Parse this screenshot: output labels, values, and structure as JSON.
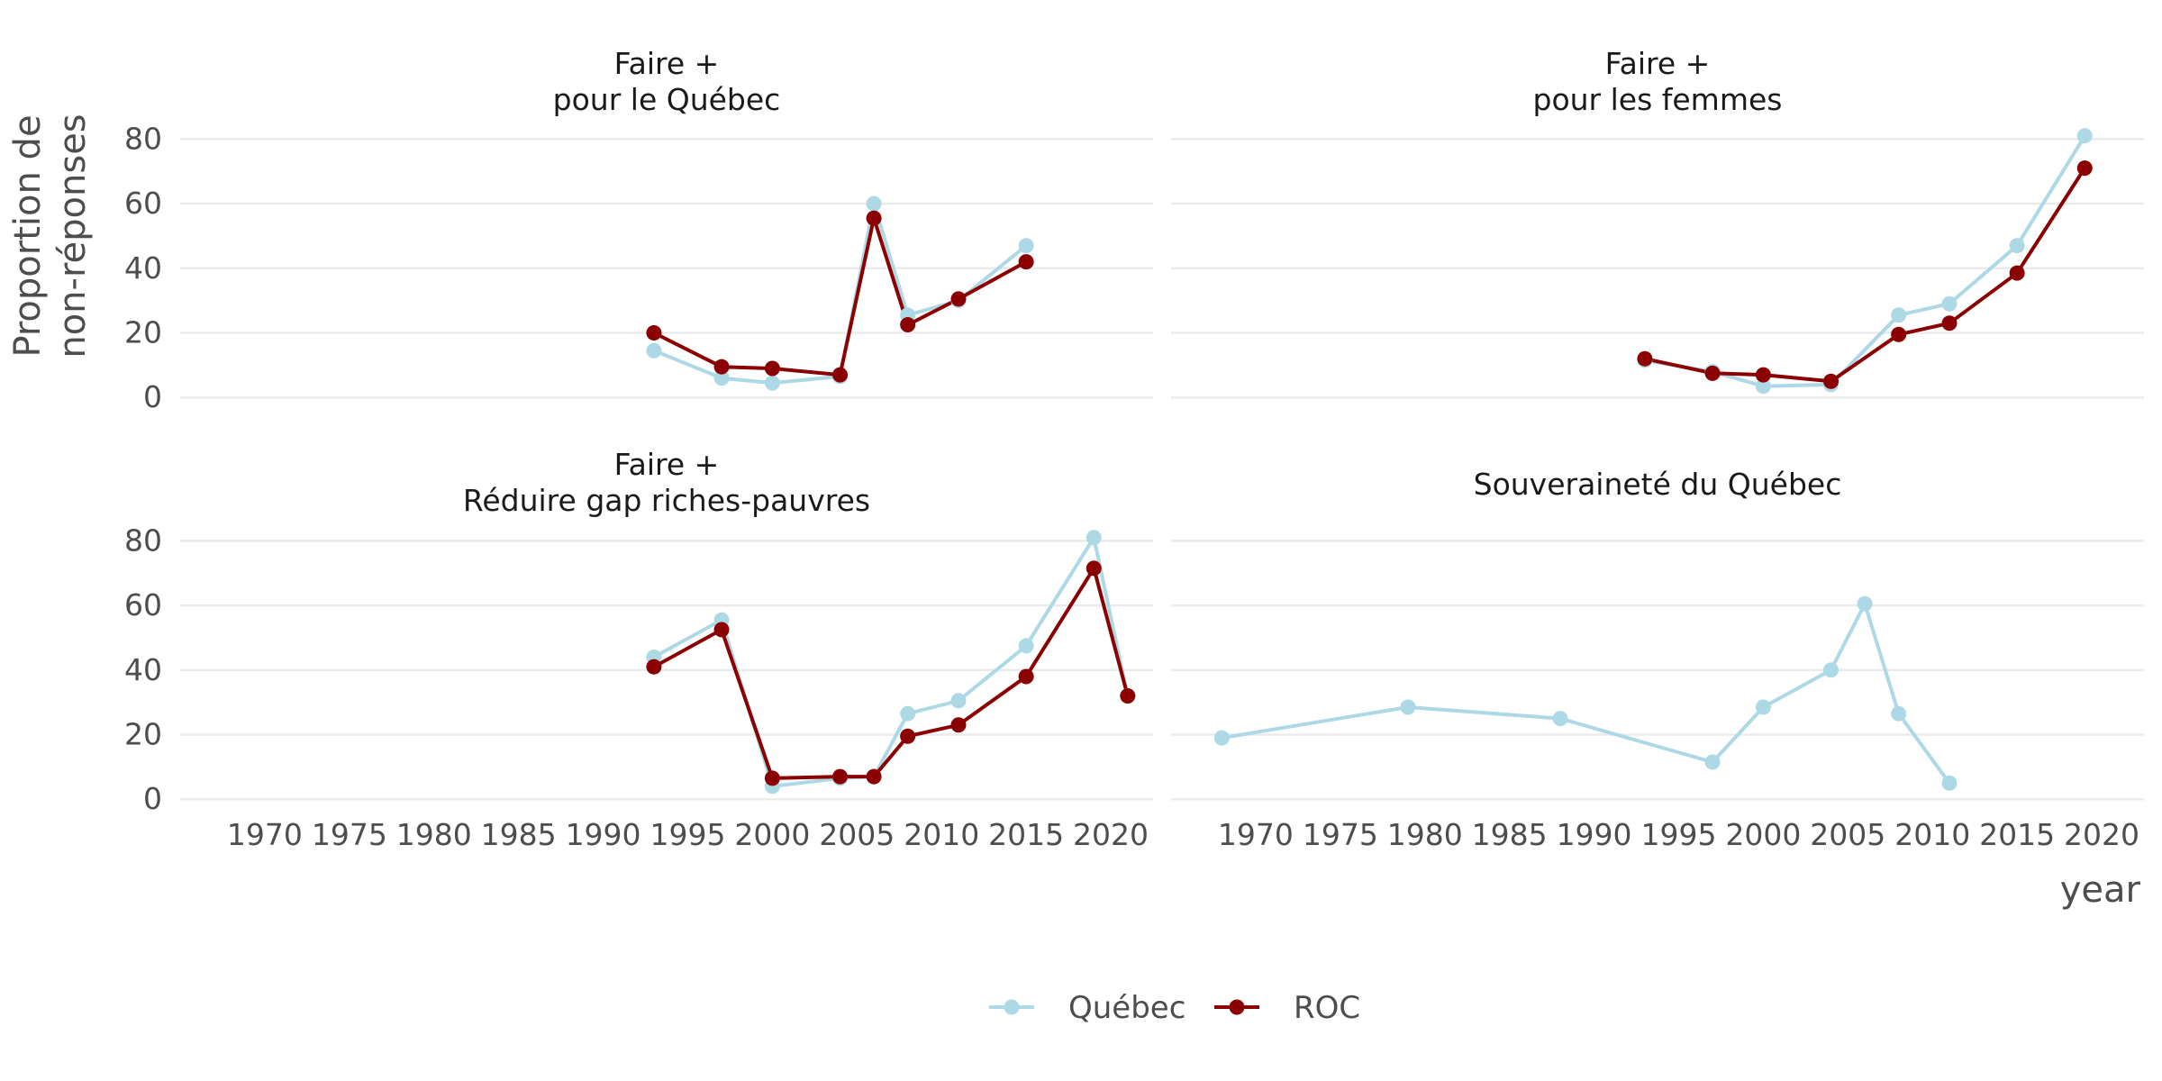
{
  "chart_data": {
    "type": "line",
    "xlabel": "year",
    "ylabel_lines": [
      "Proportion de",
      "non-réponses"
    ],
    "xlim": [
      1965,
      2022.5
    ],
    "ylim": [
      -3,
      84
    ],
    "x_ticks": [
      "1970",
      "1975",
      "1980",
      "1985",
      "1990",
      "1995",
      "2000",
      "2005",
      "2010",
      "2015",
      "2020"
    ],
    "y_ticks": [
      "0",
      "20",
      "40",
      "60",
      "80"
    ],
    "legend": {
      "position": "bottom",
      "entries": [
        {
          "name": "Québec",
          "color": "#ADD8E6"
        },
        {
          "name": "ROC",
          "color": "#8B0000"
        }
      ]
    },
    "panels": [
      {
        "title_lines": [
          "Faire +",
          "pour le Québec"
        ],
        "series": [
          {
            "name": "Québec",
            "color": "#ADD8E6",
            "x": [
              1993,
              1997,
              2000,
              2004,
              2006,
              2008,
              2011,
              2015
            ],
            "y": [
              14.5,
              6,
              4.5,
              6.5,
              60,
              25.5,
              30,
              47
            ]
          },
          {
            "name": "ROC",
            "color": "#8B0000",
            "x": [
              1993,
              1997,
              2000,
              2004,
              2006,
              2008,
              2011,
              2015
            ],
            "y": [
              20,
              9.5,
              9,
              7,
              55.5,
              22.5,
              30.5,
              42
            ]
          }
        ]
      },
      {
        "title_lines": [
          "Faire +",
          "pour les femmes"
        ],
        "series": [
          {
            "name": "Québec",
            "color": "#ADD8E6",
            "x": [
              1993,
              1997,
              2000,
              2004,
              2008,
              2011,
              2015,
              2019
            ],
            "y": [
              11.5,
              8,
              3.5,
              4,
              25.5,
              29,
              47,
              81
            ]
          },
          {
            "name": "ROC",
            "color": "#8B0000",
            "x": [
              1993,
              1997,
              2000,
              2004,
              2008,
              2011,
              2015,
              2019
            ],
            "y": [
              12,
              7.5,
              7,
              5,
              19.5,
              23,
              38.5,
              71
            ]
          }
        ]
      },
      {
        "title_lines": [
          "Faire +",
          "Réduire gap riches-pauvres"
        ],
        "series": [
          {
            "name": "Québec",
            "color": "#ADD8E6",
            "x": [
              1993,
              1997,
              2000,
              2004,
              2006,
              2008,
              2011,
              2015,
              2019,
              2021
            ],
            "y": [
              44,
              55.5,
              4,
              6.5,
              7,
              26.5,
              30.5,
              47.5,
              81,
              32
            ]
          },
          {
            "name": "ROC",
            "color": "#8B0000",
            "x": [
              1993,
              1997,
              2000,
              2004,
              2006,
              2008,
              2011,
              2015,
              2019,
              2021
            ],
            "y": [
              41,
              52.5,
              6.5,
              7,
              7,
              19.5,
              23,
              38,
              71.5,
              32
            ]
          }
        ]
      },
      {
        "title_lines": [
          "Souveraineté du Québec"
        ],
        "series": [
          {
            "name": "Québec",
            "color": "#ADD8E6",
            "x": [
              1968,
              1979,
              1988,
              1997,
              2000,
              2004,
              2006,
              2008,
              2011
            ],
            "y": [
              19,
              28.5,
              25,
              11.5,
              28.5,
              40,
              60.5,
              26.5,
              5
            ]
          }
        ]
      }
    ]
  }
}
